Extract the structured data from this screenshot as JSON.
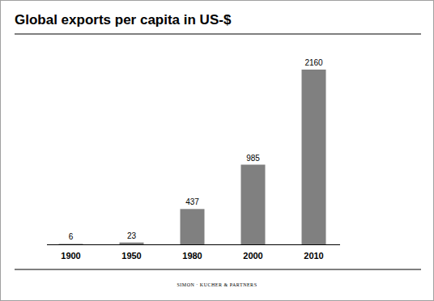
{
  "chart_data": {
    "type": "bar",
    "title": "Global exports per capita in US-$",
    "categories": [
      "1900",
      "1950",
      "1980",
      "2000",
      "2010"
    ],
    "values": [
      6,
      23,
      437,
      985,
      2160
    ],
    "color": "#808080",
    "ylim": [
      0,
      2160
    ],
    "data_labels": true,
    "tick_labels": "x",
    "annotations": [
      "SIMON · KUCHER & PARTNERS"
    ]
  }
}
